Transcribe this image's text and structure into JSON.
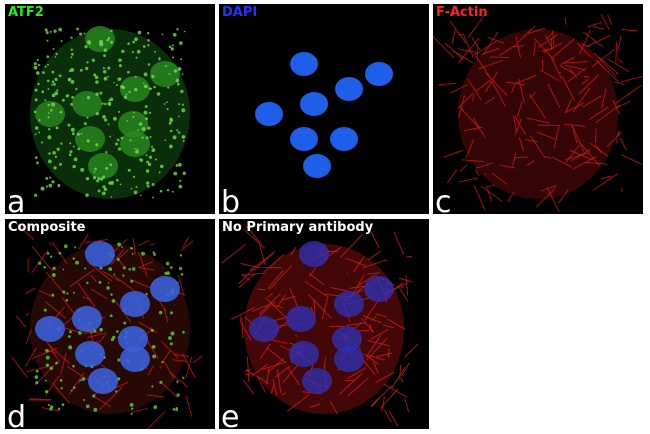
{
  "panels": [
    {
      "letter": "a",
      "title": "ATF2",
      "title_color": "#22ee22"
    },
    {
      "letter": "b",
      "title": "DAPI",
      "title_color": "#2233ff"
    },
    {
      "letter": "c",
      "title": "F-Actin",
      "title_color": "#ff2222"
    },
    {
      "letter": "d",
      "title": "Composite",
      "title_color": "#ffffff"
    },
    {
      "letter": "e",
      "title": "No Primary antibody",
      "title_color": "#ffffff"
    }
  ]
}
